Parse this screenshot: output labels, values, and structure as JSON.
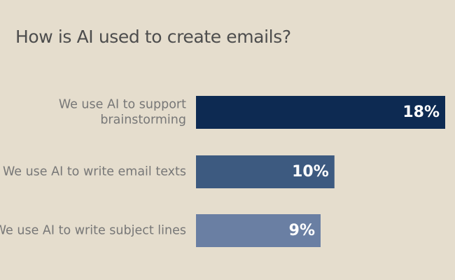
{
  "chart_data": {
    "type": "bar",
    "orientation": "horizontal",
    "title": "How is AI used to create emails?",
    "categories": [
      [
        "We use AI to support",
        "brainstorming"
      ],
      [
        "We use AI to write email texts"
      ],
      [
        "We use AI to write subject lines"
      ]
    ],
    "values": [
      18,
      10,
      9
    ],
    "value_labels": [
      "18%",
      "10%",
      "9%"
    ],
    "unit": "%",
    "xlim": [
      0,
      18
    ],
    "grid": false,
    "legend": "none",
    "bar_colors": [
      "#0d2a52",
      "#3d5a80",
      "#6a7fa3"
    ]
  }
}
